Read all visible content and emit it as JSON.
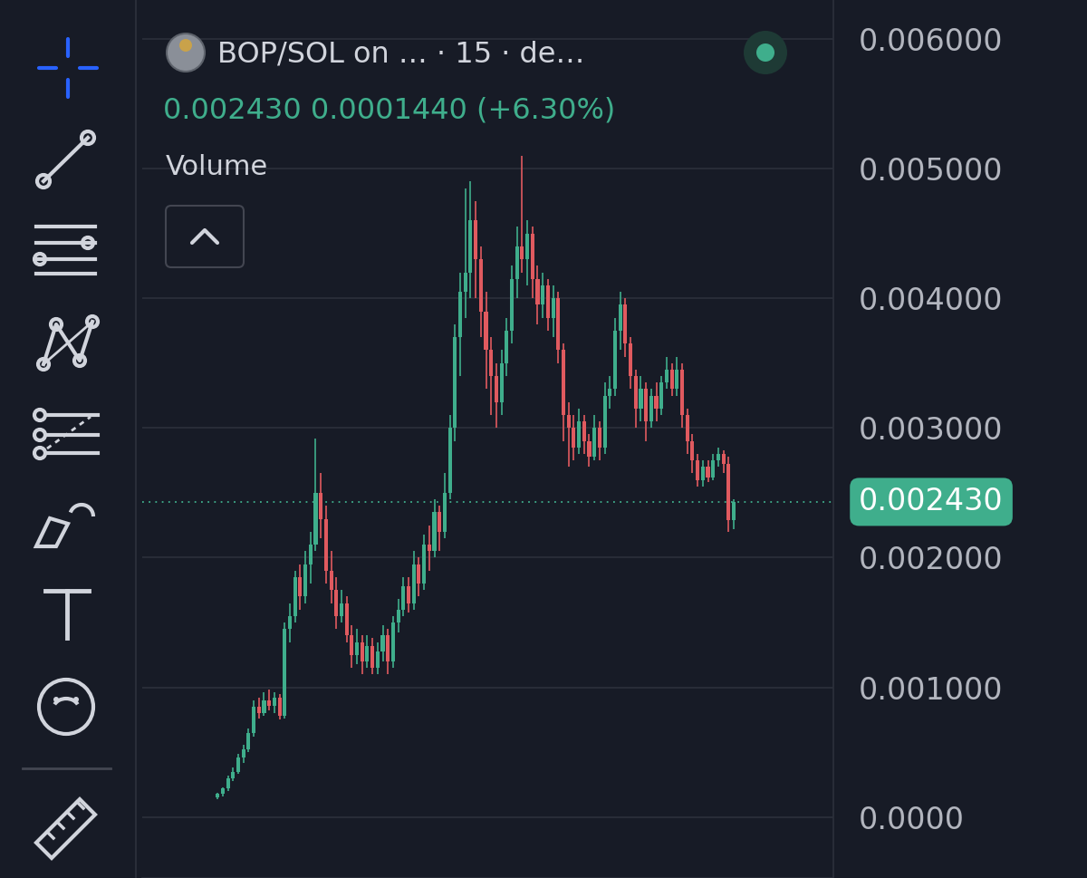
{
  "chart_data": {
    "type": "candlestick",
    "title": "BOP/SOL on … · 15 · de…",
    "subtitle": "0.002430 0.0001440 (+6.30%)",
    "annotations": [
      {
        "text": "Volume"
      }
    ],
    "last_price": {
      "value": 0.00243,
      "label": "0.002430"
    },
    "categories": [
      null,
      null,
      null,
      null,
      null,
      null,
      null,
      null,
      null,
      null,
      null,
      null,
      null,
      null,
      null,
      null,
      null,
      null,
      null,
      null,
      null,
      null,
      null,
      null,
      null,
      null,
      null,
      null,
      null,
      null,
      null,
      null,
      null,
      null,
      null,
      null,
      null,
      null,
      null,
      null,
      null,
      null,
      null,
      null,
      null,
      null,
      null,
      null,
      null,
      null,
      null,
      null,
      null,
      null,
      null,
      null,
      null,
      null,
      null,
      null,
      null,
      null,
      null,
      null,
      null,
      null,
      null,
      null,
      null,
      null,
      null,
      null,
      null,
      null,
      null,
      null,
      null,
      null,
      null,
      null,
      null,
      null,
      null,
      null,
      null,
      null,
      null,
      null,
      null,
      null,
      null,
      null,
      null,
      null,
      null,
      null,
      null,
      null,
      null,
      null,
      null
    ],
    "open": [
      0.00015,
      0.00018,
      0.00022,
      0.0003,
      0.00035,
      0.00046,
      0.00052,
      0.00065,
      0.00085,
      0.0008,
      0.0009,
      0.00086,
      0.00092,
      0.00078,
      0.00145,
      0.00155,
      0.00185,
      0.0017,
      0.00195,
      0.0021,
      0.0025,
      0.0023,
      0.0019,
      0.00175,
      0.00155,
      0.00165,
      0.0014,
      0.00125,
      0.00135,
      0.0012,
      0.00132,
      0.00115,
      0.00128,
      0.0014,
      0.0012,
      0.0015,
      0.0016,
      0.00178,
      0.00165,
      0.00195,
      0.0018,
      0.0021,
      0.00205,
      0.00235,
      0.0022,
      0.0025,
      0.003,
      0.0037,
      0.00405,
      0.0042,
      0.0046,
      0.0043,
      0.0039,
      0.0036,
      0.0034,
      0.0032,
      0.0035,
      0.00375,
      0.00415,
      0.0044,
      0.0043,
      0.0045,
      0.00415,
      0.00395,
      0.0041,
      0.00385,
      0.004,
      0.0036,
      0.0031,
      0.003,
      0.00285,
      0.00305,
      0.0029,
      0.00278,
      0.003,
      0.00285,
      0.00325,
      0.0033,
      0.00375,
      0.00395,
      0.00365,
      0.0034,
      0.00315,
      0.0033,
      0.00305,
      0.00325,
      0.00315,
      0.00335,
      0.00345,
      0.0033,
      0.00345,
      0.0031,
      0.0029,
      0.00275,
      0.0026,
      0.0027,
      0.00262,
      0.00275,
      0.0028,
      0.00272,
      0.00229
    ],
    "high": [
      0.00019,
      0.00023,
      0.00032,
      0.00038,
      0.00049,
      0.00056,
      0.00068,
      0.0009,
      0.00092,
      0.00096,
      0.00098,
      0.00096,
      0.00095,
      0.0015,
      0.00165,
      0.0019,
      0.00195,
      0.00205,
      0.0022,
      0.00292,
      0.00265,
      0.0024,
      0.00205,
      0.00185,
      0.00175,
      0.0017,
      0.00148,
      0.00145,
      0.0014,
      0.0014,
      0.00138,
      0.00135,
      0.00148,
      0.00145,
      0.00155,
      0.00168,
      0.00185,
      0.00185,
      0.00205,
      0.002,
      0.00218,
      0.00225,
      0.00245,
      0.0024,
      0.00265,
      0.0031,
      0.0038,
      0.0042,
      0.00485,
      0.0049,
      0.00475,
      0.0044,
      0.00405,
      0.0037,
      0.0035,
      0.0036,
      0.00385,
      0.00425,
      0.00455,
      0.0051,
      0.0046,
      0.00455,
      0.00425,
      0.0042,
      0.00415,
      0.0041,
      0.00405,
      0.00365,
      0.0032,
      0.0031,
      0.00315,
      0.0031,
      0.00295,
      0.0031,
      0.00305,
      0.00335,
      0.0034,
      0.00385,
      0.00405,
      0.004,
      0.0037,
      0.00345,
      0.0034,
      0.00335,
      0.0033,
      0.00335,
      0.0034,
      0.00355,
      0.0035,
      0.00355,
      0.0035,
      0.00315,
      0.00295,
      0.0028,
      0.00275,
      0.00275,
      0.0028,
      0.00285,
      0.00283,
      0.00278,
      0.00245
    ],
    "low": [
      0.00014,
      0.00016,
      0.0002,
      0.00028,
      0.00033,
      0.00042,
      0.0005,
      0.00062,
      0.00076,
      0.00078,
      0.00082,
      0.0008,
      0.00075,
      0.00076,
      0.00135,
      0.0015,
      0.0016,
      0.00165,
      0.0018,
      0.00205,
      0.00215,
      0.0018,
      0.00165,
      0.00145,
      0.0015,
      0.00135,
      0.00115,
      0.00118,
      0.0011,
      0.00115,
      0.0011,
      0.0011,
      0.0012,
      0.0011,
      0.00115,
      0.00142,
      0.00155,
      0.00158,
      0.0016,
      0.0017,
      0.00175,
      0.0019,
      0.002,
      0.00205,
      0.00215,
      0.00245,
      0.0029,
      0.0034,
      0.00385,
      0.004,
      0.004,
      0.0037,
      0.0033,
      0.0031,
      0.003,
      0.0031,
      0.0034,
      0.00365,
      0.004,
      0.0042,
      0.0041,
      0.004,
      0.0038,
      0.00385,
      0.00375,
      0.0037,
      0.0035,
      0.0029,
      0.0027,
      0.00275,
      0.0028,
      0.0028,
      0.0027,
      0.00275,
      0.00275,
      0.0028,
      0.00315,
      0.00325,
      0.0036,
      0.00355,
      0.0033,
      0.003,
      0.00305,
      0.0029,
      0.003,
      0.00305,
      0.0031,
      0.0033,
      0.00325,
      0.00325,
      0.003,
      0.0028,
      0.00265,
      0.00255,
      0.00255,
      0.00258,
      0.0026,
      0.0027,
      0.00265,
      0.0022,
      0.00222
    ],
    "close": [
      0.00018,
      0.00022,
      0.0003,
      0.00035,
      0.00046,
      0.00052,
      0.00065,
      0.00085,
      0.0008,
      0.0009,
      0.00086,
      0.00092,
      0.00078,
      0.00145,
      0.00155,
      0.00185,
      0.0017,
      0.00195,
      0.0021,
      0.0025,
      0.0023,
      0.0019,
      0.00175,
      0.00155,
      0.00165,
      0.0014,
      0.00125,
      0.00135,
      0.0012,
      0.00132,
      0.00115,
      0.00128,
      0.0014,
      0.0012,
      0.0015,
      0.0016,
      0.00178,
      0.00165,
      0.00195,
      0.0018,
      0.0021,
      0.00205,
      0.00235,
      0.0022,
      0.0025,
      0.003,
      0.0037,
      0.00405,
      0.0042,
      0.0046,
      0.0043,
      0.0039,
      0.0036,
      0.0034,
      0.0032,
      0.0035,
      0.00375,
      0.00415,
      0.0044,
      0.0043,
      0.0045,
      0.00415,
      0.00395,
      0.0041,
      0.00385,
      0.004,
      0.0036,
      0.0031,
      0.003,
      0.00285,
      0.00305,
      0.0029,
      0.00278,
      0.003,
      0.00285,
      0.00325,
      0.0033,
      0.00375,
      0.00395,
      0.00365,
      0.0034,
      0.00315,
      0.0033,
      0.00305,
      0.00325,
      0.00315,
      0.00335,
      0.00345,
      0.0033,
      0.00345,
      0.0031,
      0.0029,
      0.00275,
      0.0026,
      0.0027,
      0.00262,
      0.00275,
      0.0028,
      0.00272,
      0.00229,
      0.00243
    ],
    "ylim": [
      -0.00047,
      0.0063
    ],
    "yticks": [
      {
        "value": 0.006,
        "label": "0.006000"
      },
      {
        "value": 0.005,
        "label": "0.005000"
      },
      {
        "value": 0.004,
        "label": "0.004000"
      },
      {
        "value": 0.003,
        "label": "0.003000"
      },
      {
        "value": 0.002,
        "label": "0.002000"
      },
      {
        "value": 0.001,
        "label": "0.001000"
      },
      {
        "value": 0,
        "label": "0.0000"
      }
    ],
    "grid": true,
    "tick_labels": "y"
  }
}
